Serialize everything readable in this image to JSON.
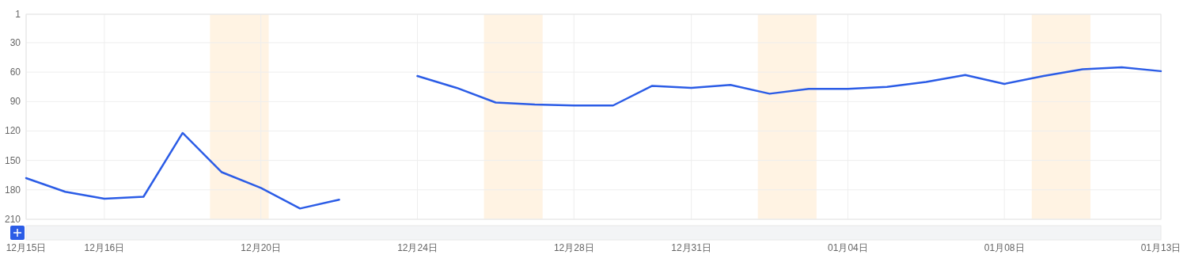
{
  "chart_data": {
    "type": "line",
    "categories": [
      "12月15日",
      null,
      "12月16日",
      null,
      null,
      null,
      "12月20日",
      null,
      null,
      null,
      "12月24日",
      null,
      null,
      null,
      "12月28日",
      null,
      null,
      "12月31日",
      null,
      null,
      null,
      "01月04日",
      null,
      null,
      null,
      "01月08日",
      null,
      null,
      null,
      "01月13日"
    ],
    "series": [
      {
        "color": "#2b5ce6",
        "values": [
          168,
          182,
          189,
          187,
          122,
          162,
          178,
          199,
          190,
          null,
          64,
          76,
          91,
          93,
          94,
          94,
          74,
          76,
          73,
          82,
          77,
          77,
          75,
          70,
          63,
          72,
          64,
          57,
          55,
          59
        ]
      }
    ],
    "ylim": [
      210,
      1
    ],
    "yticks": [
      1,
      30,
      60,
      90,
      120,
      150,
      180,
      210
    ],
    "grid": true,
    "marker": "none",
    "line_style": "solid"
  }
}
